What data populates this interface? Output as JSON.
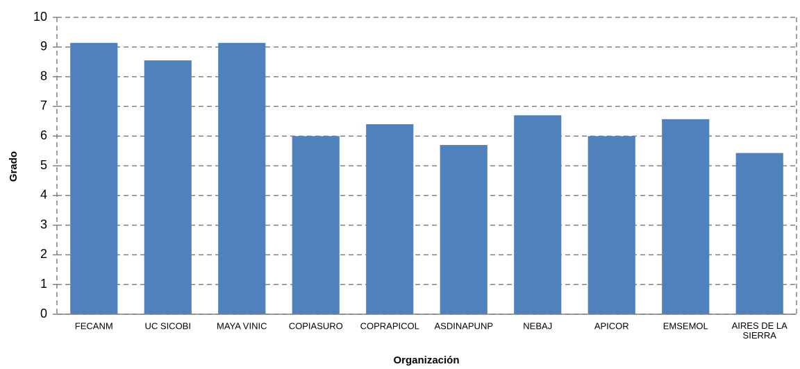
{
  "chart_data": {
    "type": "bar",
    "categories": [
      "FECANM",
      "UC SICOBI",
      "MAYA VINIC",
      "COPIASURO",
      "COPRAPICOL",
      "ASDINAPUNP",
      "NEBAJ",
      "APICOR",
      "EMSEMOL",
      "AIRES DE LA SIERRA"
    ],
    "values": [
      9.14,
      8.55,
      9.14,
      6.0,
      6.4,
      5.7,
      6.7,
      6.0,
      6.57,
      5.43
    ],
    "color": "#4f81bd",
    "ylim": [
      0,
      10
    ],
    "yticks": [
      0,
      1,
      2,
      3,
      4,
      5,
      6,
      7,
      8,
      9,
      10
    ],
    "grid": true,
    "y_label": "Grado",
    "x_label": "Organización"
  }
}
